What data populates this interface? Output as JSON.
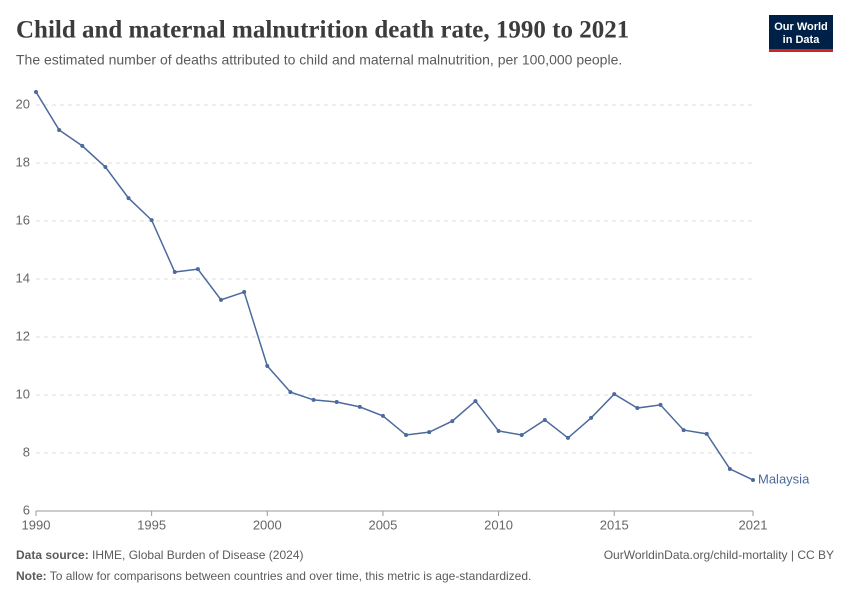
{
  "chart_data": {
    "type": "line",
    "title": "Child and maternal malnutrition death rate, 1990 to 2021",
    "subtitle": "The estimated number of deaths attributed to child and maternal malnutrition, per 100,000 people.",
    "logo": [
      "Our World",
      "in Data"
    ],
    "source_label": "Data source:",
    "source": "IHME, Global Burden of Disease (2024)",
    "url": "OurWorldinData.org/child-mortality | CC BY",
    "note_label": "Note:",
    "note": "To allow for comparisons between countries and over time, this metric is age-standardized.",
    "x": [
      1990,
      1991,
      1992,
      1993,
      1994,
      1995,
      1996,
      1997,
      1998,
      1999,
      2000,
      2001,
      2002,
      2003,
      2004,
      2005,
      2006,
      2007,
      2008,
      2009,
      2010,
      2011,
      2012,
      2013,
      2014,
      2015,
      2016,
      2017,
      2018,
      2019,
      2020,
      2021
    ],
    "series": [
      {
        "name": "Malaysia",
        "color": "#4c6a9c",
        "values": [
          20.45,
          19.14,
          18.59,
          17.86,
          16.79,
          16.03,
          14.24,
          14.34,
          13.28,
          13.55,
          11.0,
          10.1,
          9.83,
          9.76,
          9.59,
          9.28,
          8.62,
          8.72,
          9.1,
          9.79,
          8.76,
          8.62,
          9.14,
          8.52,
          9.21,
          10.03,
          9.55,
          9.66,
          8.79,
          8.66,
          7.45,
          7.07
        ]
      }
    ],
    "xlim": [
      1990,
      2021
    ],
    "xticks": [
      1990,
      1995,
      2000,
      2005,
      2010,
      2015,
      2021
    ],
    "ylim": [
      6,
      20.5
    ],
    "yticks": [
      6,
      8,
      10,
      12,
      14,
      16,
      18,
      20
    ],
    "grid": true
  }
}
